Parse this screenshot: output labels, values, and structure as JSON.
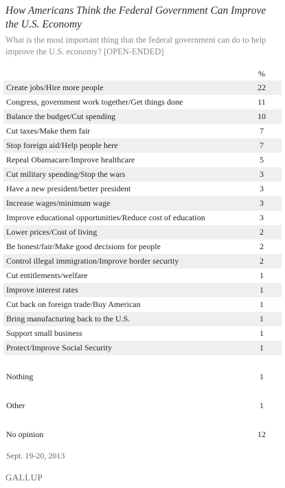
{
  "title": "How Americans Think the Federal Government Can Improve the U.S. Economy",
  "subtitle": "What is the most important thing that the federal government can do to help improve the U.S. economy? [OPEN-ENDED]",
  "column_header": "%",
  "footer_date": "Sept. 19-20, 2013",
  "logo_text": "GALLUP",
  "colors": {
    "shade": "#efefef",
    "title": "#2a2a2a",
    "subtitle": "#888888"
  },
  "chart_data": {
    "type": "table",
    "title": "How Americans Think the Federal Government Can Improve the U.S. Economy",
    "columns": [
      "",
      "%"
    ],
    "rows": [
      {
        "label": "Create jobs/Hire more people",
        "value": 22
      },
      {
        "label": "Congress, government work together/Get things done",
        "value": 11
      },
      {
        "label": "Balance the budget/Cut spending",
        "value": 10
      },
      {
        "label": "Cut taxes/Make them fair",
        "value": 7
      },
      {
        "label": "Stop foreign aid/Help people here",
        "value": 7
      },
      {
        "label": "Repeal Obamacare/Improve healthcare",
        "value": 5
      },
      {
        "label": "Cut military spending/Stop the wars",
        "value": 3
      },
      {
        "label": "Have a new president/better president",
        "value": 3
      },
      {
        "label": "Increase wages/minimum wage",
        "value": 3
      },
      {
        "label": "Improve educational opportunities/Reduce cost of education",
        "value": 3
      },
      {
        "label": "Lower prices/Cost of living",
        "value": 2
      },
      {
        "label": "Be honest/fair/Make good decisions for people",
        "value": 2
      },
      {
        "label": "Control illegal immigration/Improve border security",
        "value": 2
      },
      {
        "label": "Cut entitlements/welfare",
        "value": 1
      },
      {
        "label": "Improve interest rates",
        "value": 1
      },
      {
        "label": "Cut back on foreign trade/Buy American",
        "value": 1
      },
      {
        "label": "Bring manufacturing back to the U.S.",
        "value": 1
      },
      {
        "label": "Support small business",
        "value": 1
      },
      {
        "label": "Protect/Improve Social Security",
        "value": 1
      },
      {
        "label": "Nothing",
        "value": 1
      },
      {
        "label": "Other",
        "value": 1
      },
      {
        "label": "No opinion",
        "value": 12
      }
    ]
  }
}
